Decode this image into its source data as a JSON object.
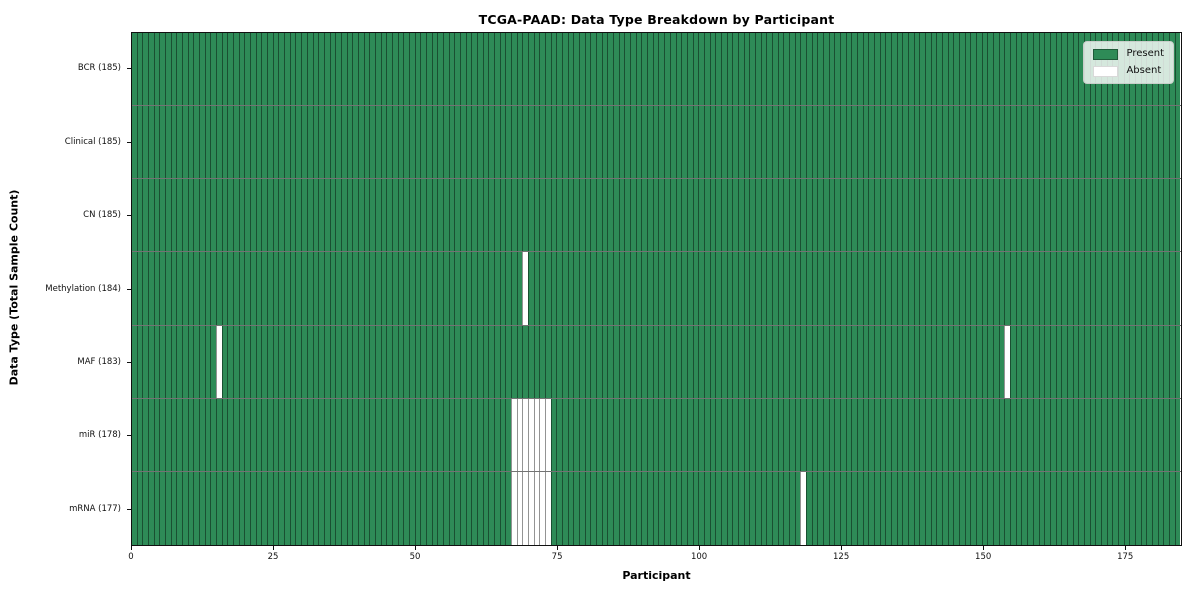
{
  "title": "TCGA-PAAD: Data Type Breakdown by Participant",
  "axes": {
    "xlabel": "Participant",
    "ylabel": "Data Type (Total Sample Count)"
  },
  "legend": {
    "present_label": "Present",
    "absent_label": "Absent"
  },
  "colors": {
    "present": "#2e8b57",
    "absent": "#ffffff",
    "axis": "#111111"
  },
  "chart_data": {
    "type": "heatmap",
    "title": "TCGA-PAAD: Data Type Breakdown by Participant",
    "xlabel": "Participant",
    "ylabel": "Data Type (Total Sample Count)",
    "n_participants": 185,
    "xlim": [
      0,
      185
    ],
    "x_ticks": [
      0,
      25,
      50,
      75,
      100,
      125,
      150,
      175
    ],
    "legend_entries": [
      "Present",
      "Absent"
    ],
    "legend_position": "upper right",
    "grid": false,
    "rows": [
      {
        "label": "BCR (185)",
        "data_type": "BCR",
        "total_sample_count": 185,
        "absent_participants": []
      },
      {
        "label": "Clinical (185)",
        "data_type": "Clinical",
        "total_sample_count": 185,
        "absent_participants": []
      },
      {
        "label": "CN (185)",
        "data_type": "CN",
        "total_sample_count": 185,
        "absent_participants": []
      },
      {
        "label": "Methylation (184)",
        "data_type": "Methylation",
        "total_sample_count": 184,
        "absent_participants": [
          69
        ]
      },
      {
        "label": "MAF (183)",
        "data_type": "MAF",
        "total_sample_count": 183,
        "absent_participants": [
          15,
          154
        ]
      },
      {
        "label": "miR (178)",
        "data_type": "miR",
        "total_sample_count": 178,
        "absent_participants": [
          67,
          68,
          69,
          70,
          71,
          72,
          73
        ]
      },
      {
        "label": "mRNA (177)",
        "data_type": "mRNA",
        "total_sample_count": 177,
        "absent_participants": [
          67,
          68,
          69,
          70,
          71,
          72,
          73,
          118
        ]
      }
    ]
  }
}
